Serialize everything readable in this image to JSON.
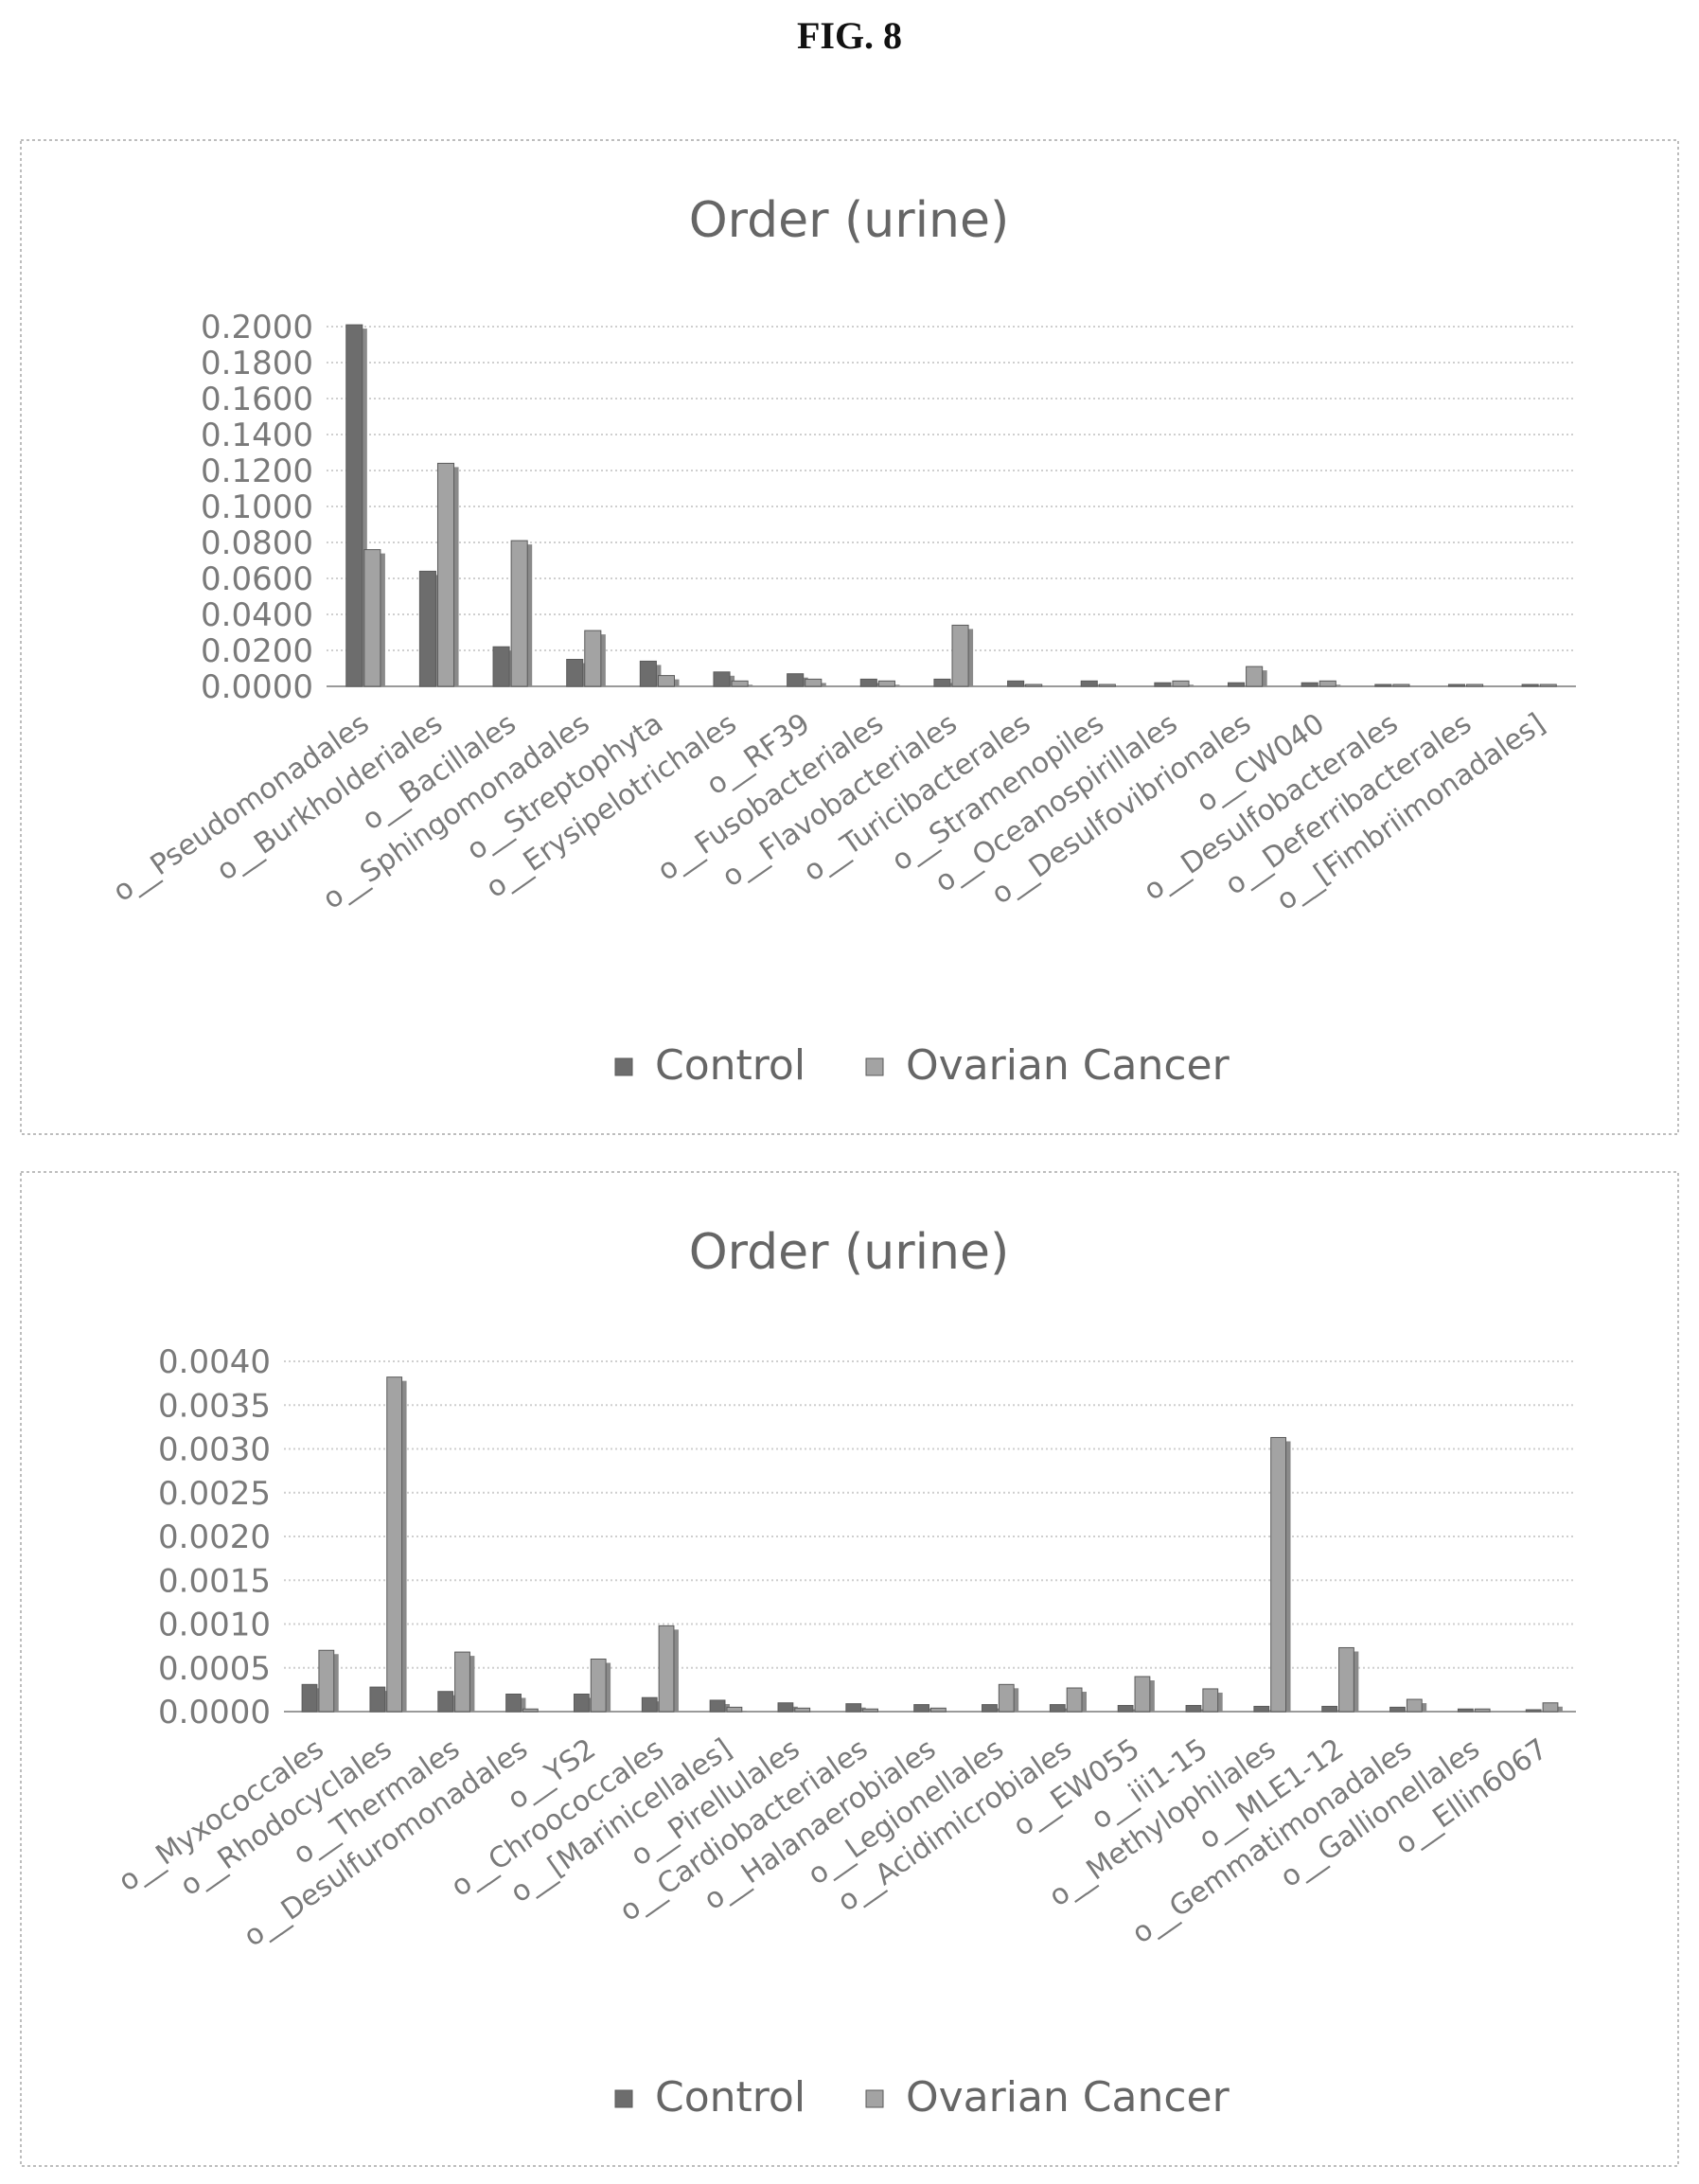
{
  "page": {
    "figure_label": "FIG. 8"
  },
  "chart_data": [
    {
      "type": "bar",
      "title": "Order (urine)",
      "ylim": [
        0,
        0.2
      ],
      "yticks": [
        "0.0000",
        "0.0200",
        "0.0400",
        "0.0600",
        "0.0800",
        "0.1000",
        "0.1200",
        "0.1400",
        "0.1600",
        "0.1800",
        "0.2000"
      ],
      "categories": [
        "o__Pseudomonadales",
        "o__Burkholderiales",
        "o__Bacillales",
        "o__Sphingomonadales",
        "o__Streptophyta",
        "o__Erysipelotrichales",
        "o__RF39",
        "o__Fusobacteriales",
        "o__Flavobacteriales",
        "o__Turicibacterales",
        "o__Stramenopiles",
        "o__Oceanospirillales",
        "o__Desulfovibrionales",
        "o__CW040",
        "o__Desulfobacterales",
        "o__Deferribacterales",
        "o__[Fimbriimonadales]"
      ],
      "series": [
        {
          "name": "Control",
          "values": [
            0.201,
            0.064,
            0.022,
            0.015,
            0.014,
            0.008,
            0.007,
            0.004,
            0.004,
            0.003,
            0.003,
            0.002,
            0.002,
            0.002,
            0.001,
            0.001,
            0.001
          ]
        },
        {
          "name": "Ovarian Cancer",
          "values": [
            0.076,
            0.124,
            0.081,
            0.031,
            0.006,
            0.003,
            0.004,
            0.003,
            0.034,
            0.001,
            0.001,
            0.003,
            0.011,
            0.003,
            0.001,
            0.001,
            0.001
          ]
        }
      ],
      "grid": true,
      "legend": "bottom",
      "colors": {
        "control": "#6d6d6d",
        "ovarian": "#a3a3a3"
      }
    },
    {
      "type": "bar",
      "title": "Order (urine)",
      "ylim": [
        0,
        0.004
      ],
      "yticks": [
        "0.0000",
        "0.0005",
        "0.0010",
        "0.0015",
        "0.0020",
        "0.0025",
        "0.0030",
        "0.0035",
        "0.0040"
      ],
      "categories": [
        "o__Myxococcales",
        "o__Rhodocyclales",
        "o__Thermales",
        "o__Desulfuromonadales",
        "o__YS2",
        "o__Chroococcales",
        "o__[Marinicellales]",
        "o__Pirellulales",
        "o__Cardiobacteriales",
        "o__Halanaerobiales",
        "o__Legionellales",
        "o__Acidimicrobiales",
        "o__EW055",
        "o__iii1-15",
        "o__Methylophilales",
        "o__MLE1-12",
        "o__Gemmatimonadales",
        "o__Gallionellales",
        "o__Ellin6067"
      ],
      "series": [
        {
          "name": "Control",
          "values": [
            0.00031,
            0.00028,
            0.00023,
            0.0002,
            0.0002,
            0.00016,
            0.00013,
            0.0001,
            9e-05,
            8e-05,
            8e-05,
            8e-05,
            7e-05,
            7e-05,
            6e-05,
            6e-05,
            5e-05,
            3e-05,
            2e-05
          ]
        },
        {
          "name": "Ovarian Cancer",
          "values": [
            0.0007,
            0.00382,
            0.00068,
            3e-05,
            0.0006,
            0.00098,
            5e-05,
            4e-05,
            3e-05,
            4e-05,
            0.00031,
            0.00027,
            0.0004,
            0.00026,
            0.00313,
            0.00073,
            0.00014,
            3e-05,
            0.0001
          ]
        }
      ],
      "grid": true,
      "legend": "bottom",
      "colors": {
        "control": "#6d6d6d",
        "ovarian": "#a3a3a3"
      }
    }
  ]
}
